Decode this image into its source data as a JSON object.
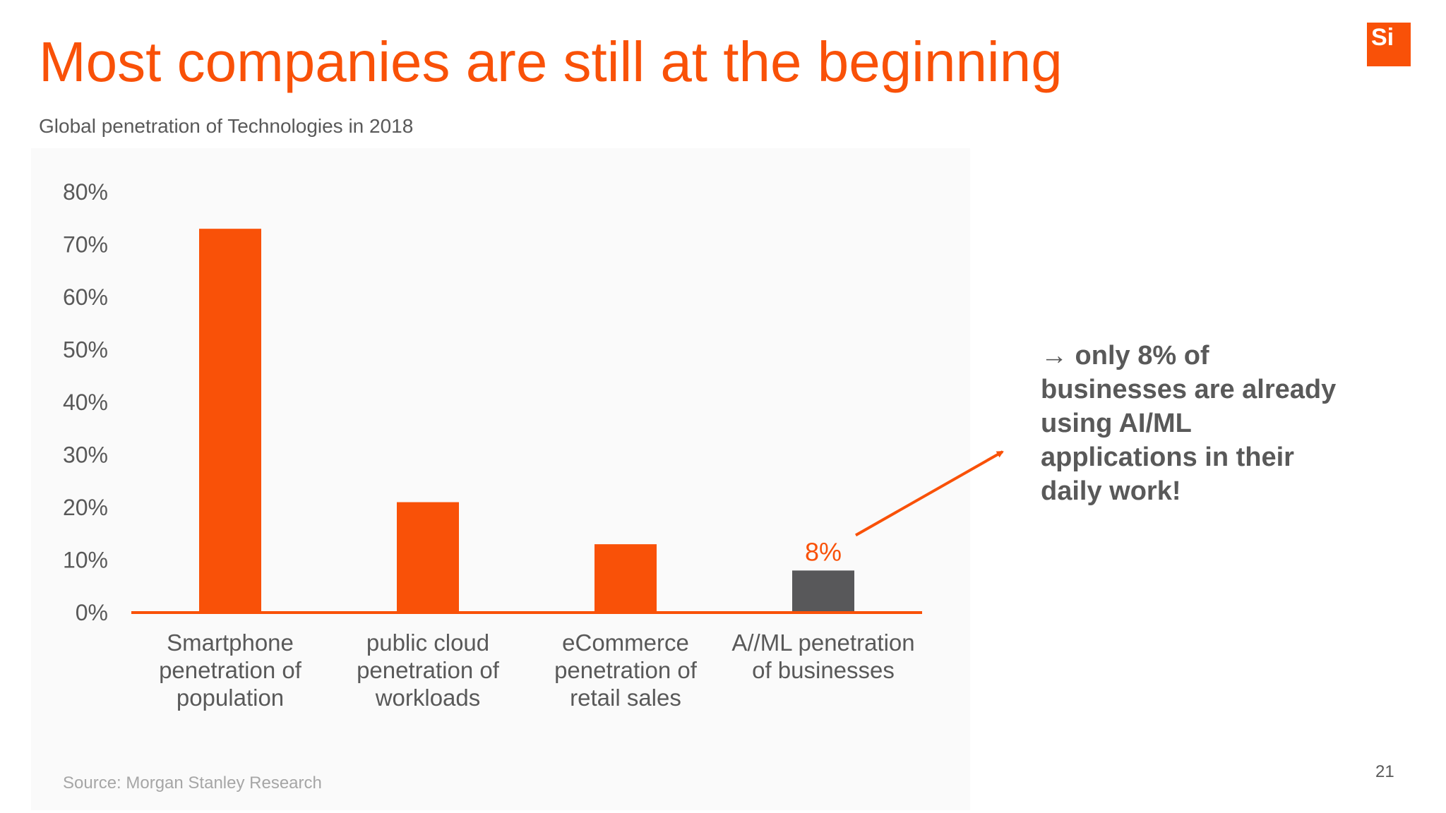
{
  "slide": {
    "title": "Most companies are still at the beginning",
    "subtitle": "Global penetration of Technologies in 2018",
    "logo_text": "Si",
    "callout": "→ only 8% of businesses are already using AI/ML applications in their daily work!",
    "source": "Source: Morgan Stanley Research",
    "page_number": "21"
  },
  "colors": {
    "accent": "#f95108",
    "highlight_bar": "#58585a",
    "text": "#595959"
  },
  "chart_data": {
    "type": "bar",
    "title": "",
    "xlabel": "",
    "ylabel": "",
    "categories": [
      "Smartphone penetration of population",
      "public cloud penetration of workloads",
      "eCommerce penetration of retail sales",
      "A//ML penetration of businesses"
    ],
    "category_lines": [
      [
        "Smartphone",
        "penetration of",
        "population"
      ],
      [
        "public cloud",
        "penetration of",
        "workloads"
      ],
      [
        "eCommerce",
        "penetration of",
        "retail sales"
      ],
      [
        "A//ML penetration",
        "of businesses"
      ]
    ],
    "values": [
      73,
      21,
      13,
      8
    ],
    "bar_colors": [
      "#f95108",
      "#f95108",
      "#f95108",
      "#58585a"
    ],
    "data_labels": [
      "",
      "",
      "",
      "8%"
    ],
    "ylim": [
      0,
      80
    ],
    "y_ticks": [
      0,
      10,
      20,
      30,
      40,
      50,
      60,
      70,
      80
    ],
    "y_tick_labels": [
      "0%",
      "10%",
      "20%",
      "30%",
      "40%",
      "50%",
      "60%",
      "70%",
      "80%"
    ],
    "grid": false,
    "legend": "none"
  }
}
